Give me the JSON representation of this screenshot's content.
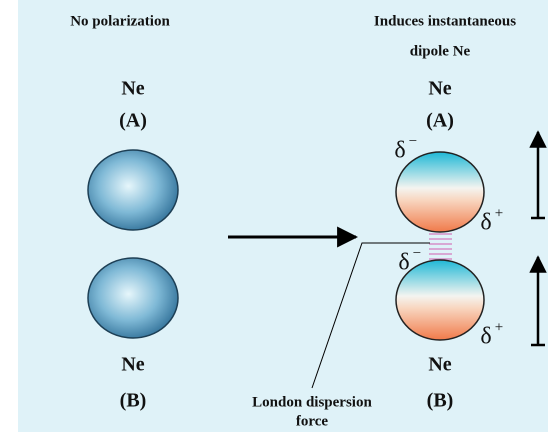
{
  "left": {
    "title": "No polarization",
    "atoms": [
      {
        "symbol": "Ne",
        "label": "(A)"
      },
      {
        "symbol": "Ne",
        "label": "(B)"
      }
    ]
  },
  "right": {
    "title_lines": [
      "Induces instantaneous",
      "dipole Ne"
    ],
    "atoms": [
      {
        "symbol": "Ne",
        "label": "(A)",
        "top_charge": {
          "symbol": "δ",
          "sign": "−"
        },
        "bottom_charge": {
          "symbol": "δ",
          "sign": "+"
        }
      },
      {
        "symbol": "Ne",
        "label": "(B)",
        "top_charge": {
          "symbol": "δ",
          "sign": "−"
        },
        "bottom_charge": {
          "symbol": "δ",
          "sign": "+"
        }
      }
    ]
  },
  "annotation": [
    "London dispersion",
    "force"
  ]
}
